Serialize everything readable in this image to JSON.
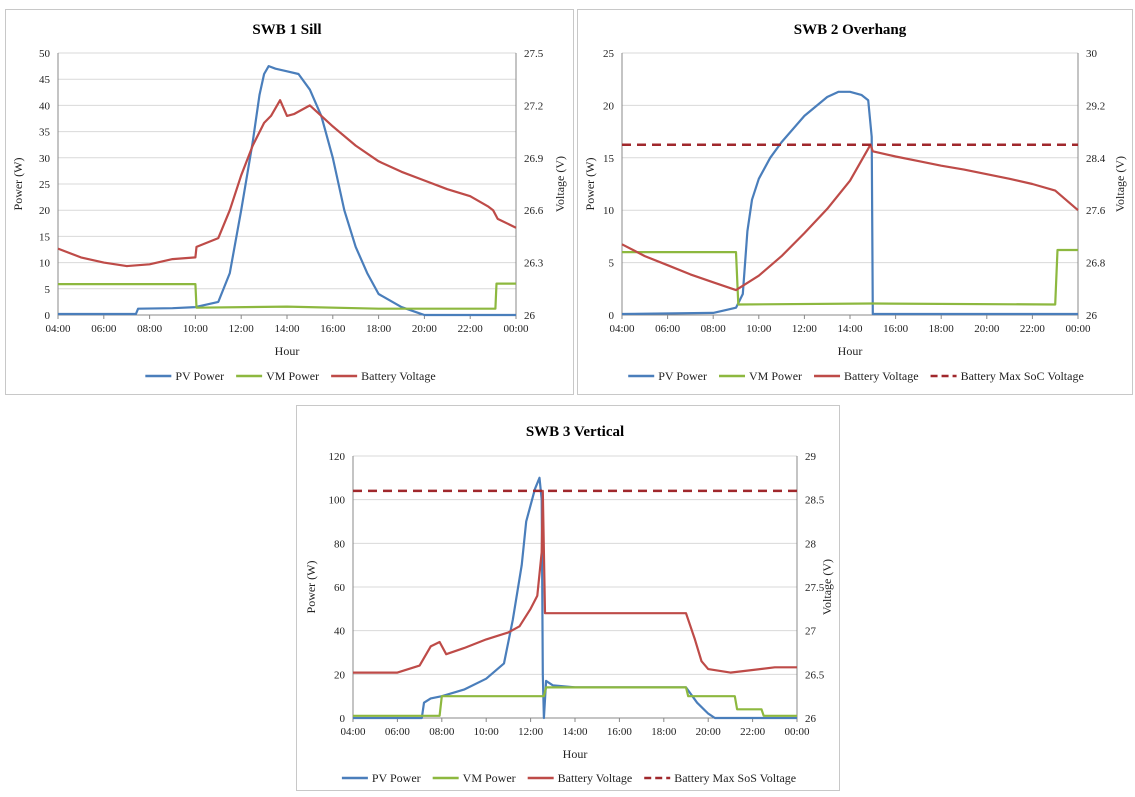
{
  "chart_data": [
    {
      "type": "line",
      "title": "SWB 1 Sill",
      "xlabel": "Hour",
      "ylabel": "Power (W)",
      "y2label": "Voltage (V)",
      "x_ticks": [
        "04:00",
        "06:00",
        "08:00",
        "10:00",
        "12:00",
        "14:00",
        "16:00",
        "18:00",
        "20:00",
        "22:00",
        "00:00"
      ],
      "x_range_hours": [
        4,
        24
      ],
      "ylim": [
        0,
        50
      ],
      "y_ticks": [
        "0",
        "5",
        "10",
        "15",
        "20",
        "25",
        "30",
        "35",
        "40",
        "45",
        "50"
      ],
      "y2lim": [
        26,
        27.5
      ],
      "y2_ticks": [
        "26",
        "26.3",
        "26.6",
        "26.9",
        "27.2",
        "27.5"
      ],
      "grid": true,
      "legend": "bottom",
      "colors": {
        "pv": "#4a7ebb",
        "vm": "#8db83f",
        "bat": "#be4b48",
        "max": "#a0282c"
      },
      "series": [
        {
          "name": "PV Power",
          "axis": "left",
          "style": "solid",
          "color": "#4a7ebb",
          "x": [
            4,
            7.4,
            7.5,
            9,
            10,
            11,
            11.5,
            12,
            12.5,
            12.8,
            13,
            13.2,
            13.5,
            14,
            14.5,
            15,
            15.5,
            16,
            16.5,
            17,
            17.5,
            18,
            19,
            19.8,
            20,
            22,
            23,
            24
          ],
          "y": [
            0.2,
            0.2,
            1.2,
            1.3,
            1.5,
            2.5,
            8,
            20,
            33,
            42,
            46,
            47.5,
            47,
            46.5,
            46,
            43,
            38,
            30,
            20,
            13,
            8,
            4,
            1.5,
            0.3,
            0,
            0,
            0,
            0
          ]
        },
        {
          "name": "VM Power",
          "axis": "left",
          "style": "solid",
          "color": "#8db83f",
          "x": [
            4,
            10,
            10.05,
            14,
            18,
            22,
            23.1,
            23.15,
            24
          ],
          "y": [
            5.9,
            5.9,
            1.4,
            1.6,
            1.2,
            1.2,
            1.2,
            6.0,
            6.0
          ]
        },
        {
          "name": "Battery Voltage",
          "axis": "right",
          "style": "solid",
          "color": "#be4b48",
          "x": [
            4,
            5,
            6,
            7,
            8,
            9,
            10,
            10.05,
            11,
            11.5,
            12,
            12.5,
            13,
            13.3,
            13.7,
            14,
            14.3,
            15,
            16,
            17,
            18,
            19,
            20,
            21,
            22,
            22.8,
            23,
            23.2,
            24
          ],
          "y": [
            26.38,
            26.33,
            26.3,
            26.28,
            26.29,
            26.32,
            26.33,
            26.39,
            26.44,
            26.6,
            26.8,
            26.97,
            27.1,
            27.14,
            27.23,
            27.14,
            27.15,
            27.2,
            27.08,
            26.97,
            26.88,
            26.82,
            26.77,
            26.72,
            26.68,
            26.62,
            26.6,
            26.55,
            26.5
          ]
        }
      ]
    },
    {
      "type": "line",
      "title": "SWB 2 Overhang",
      "xlabel": "Hour",
      "ylabel": "Power (W)",
      "y2label": "Voltage (V)",
      "x_ticks": [
        "04:00",
        "06:00",
        "08:00",
        "10:00",
        "12:00",
        "14:00",
        "16:00",
        "18:00",
        "20:00",
        "22:00",
        "00:00"
      ],
      "x_range_hours": [
        4,
        24
      ],
      "ylim": [
        0,
        25
      ],
      "y_ticks": [
        "0",
        "5",
        "10",
        "15",
        "20",
        "25"
      ],
      "y2lim": [
        26,
        30
      ],
      "y2_ticks": [
        "26",
        "26.8",
        "27.6",
        "28.4",
        "29.2",
        "30"
      ],
      "grid": true,
      "legend": "bottom",
      "series": [
        {
          "name": "PV Power",
          "axis": "left",
          "style": "solid",
          "color": "#4a7ebb",
          "x": [
            4,
            8,
            8.6,
            9,
            9.3,
            9.5,
            9.7,
            10,
            10.5,
            11,
            12,
            13,
            13.5,
            14,
            14.5,
            14.8,
            14.95,
            15,
            24
          ],
          "y": [
            0.1,
            0.2,
            0.5,
            0.7,
            2,
            8,
            11,
            13,
            15,
            16.5,
            19,
            20.8,
            21.3,
            21.3,
            21,
            20.5,
            17,
            0.1,
            0.1
          ]
        },
        {
          "name": "VM Power",
          "axis": "left",
          "style": "solid",
          "color": "#8db83f",
          "x": [
            4,
            9,
            9.1,
            15,
            23,
            23.1,
            24
          ],
          "y": [
            6.0,
            6.0,
            1.0,
            1.1,
            1.0,
            6.2,
            6.2
          ]
        },
        {
          "name": "Battery Voltage",
          "axis": "right",
          "style": "solid",
          "color": "#be4b48",
          "x": [
            4,
            5,
            6,
            7,
            8,
            9,
            10,
            11,
            12,
            13,
            14,
            14.9,
            15,
            16,
            17,
            18,
            19,
            20,
            21,
            22,
            23,
            24
          ],
          "y": [
            27.08,
            26.9,
            26.76,
            26.62,
            26.5,
            26.38,
            26.6,
            26.9,
            27.25,
            27.62,
            28.05,
            28.6,
            28.5,
            28.42,
            28.35,
            28.28,
            28.22,
            28.15,
            28.08,
            28.0,
            27.9,
            27.6
          ]
        },
        {
          "name": "Battery Max SoC Voltage",
          "axis": "right",
          "style": "dashed",
          "color": "#a0282c",
          "x": [
            4,
            24
          ],
          "y": [
            28.6,
            28.6
          ]
        }
      ]
    },
    {
      "type": "line",
      "title": "SWB 3 Vertical",
      "xlabel": "Hour",
      "ylabel": "Power (W)",
      "y2label": "Voltage (V)",
      "x_ticks": [
        "04:00",
        "06:00",
        "08:00",
        "10:00",
        "12:00",
        "14:00",
        "16:00",
        "18:00",
        "20:00",
        "22:00",
        "00:00"
      ],
      "x_range_hours": [
        4,
        24
      ],
      "ylim": [
        0,
        120
      ],
      "y_ticks": [
        "0",
        "20",
        "40",
        "60",
        "80",
        "100",
        "120"
      ],
      "y2lim": [
        26,
        29
      ],
      "y2_ticks": [
        "26",
        "26.5",
        "27",
        "27.5",
        "28",
        "28.5",
        "29"
      ],
      "grid": true,
      "legend": "bottom",
      "series": [
        {
          "name": "PV Power",
          "axis": "left",
          "style": "solid",
          "color": "#4a7ebb",
          "x": [
            4,
            7.1,
            7.2,
            7.5,
            8,
            9,
            10,
            10.8,
            11.2,
            11.6,
            11.8,
            12.2,
            12.4,
            12.5,
            12.55,
            12.6,
            12.7,
            13,
            14,
            15,
            16,
            17,
            18,
            19,
            19.5,
            20,
            20.3,
            24
          ],
          "y": [
            0,
            0,
            7,
            9,
            10,
            13,
            18,
            25,
            45,
            70,
            90,
            105,
            110,
            100,
            20,
            0,
            17,
            15,
            14,
            14,
            14,
            14,
            14,
            14,
            7,
            2,
            0,
            0
          ]
        },
        {
          "name": "VM Power",
          "axis": "left",
          "style": "solid",
          "color": "#8db83f",
          "x": [
            4,
            7.9,
            8,
            12.6,
            12.7,
            19,
            19.1,
            21.2,
            21.3,
            22.4,
            22.5,
            24
          ],
          "y": [
            1,
            1,
            10,
            10,
            14,
            14,
            10,
            10,
            4,
            4,
            1,
            1
          ]
        },
        {
          "name": "Battery Voltage",
          "axis": "right",
          "style": "solid",
          "color": "#be4b48",
          "x": [
            4,
            6,
            7,
            7.5,
            7.9,
            8.2,
            9,
            10,
            11,
            11.5,
            12,
            12.3,
            12.5,
            12.55,
            12.65,
            12.8,
            19,
            19.4,
            19.7,
            20,
            21,
            22,
            23,
            24
          ],
          "y": [
            26.52,
            26.52,
            26.6,
            26.82,
            26.87,
            26.73,
            26.8,
            26.9,
            26.98,
            27.05,
            27.25,
            27.4,
            27.9,
            28.6,
            27.2,
            27.2,
            27.2,
            26.9,
            26.65,
            26.56,
            26.52,
            26.55,
            26.58,
            26.58
          ]
        },
        {
          "name": "Battery Max SoS Voltage",
          "axis": "right",
          "style": "dashed",
          "color": "#a0282c",
          "x": [
            4,
            24
          ],
          "y": [
            28.6,
            28.6
          ]
        }
      ]
    }
  ]
}
